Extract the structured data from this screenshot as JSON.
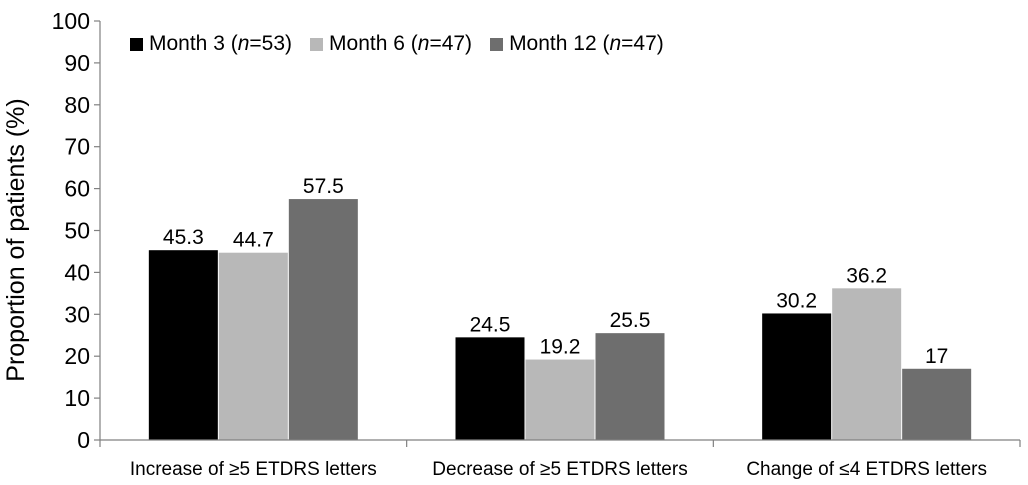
{
  "chart_data": {
    "type": "bar",
    "categories": [
      "Increase of ≥5 ETDRS letters",
      "Decrease of ≥5 ETDRS letters",
      "Change of ≤4 ETDRS letters"
    ],
    "series": [
      {
        "name": "Month 3 (n=53)",
        "name_prefix": "Month 3 (",
        "name_italic": "n",
        "name_suffix": "=53)",
        "color": "#000000",
        "values": [
          45.3,
          24.5,
          30.2
        ],
        "labels": [
          "45.3",
          "24.5",
          "30.2"
        ]
      },
      {
        "name": "Month 6 (n=47)",
        "name_prefix": "Month 6 (",
        "name_italic": "n",
        "name_suffix": "=47)",
        "color": "#b8b8b8",
        "values": [
          44.7,
          19.2,
          36.2
        ],
        "labels": [
          "44.7",
          "19.2",
          "36.2"
        ]
      },
      {
        "name": "Month 12 (n=47)",
        "name_prefix": "Month 12 (",
        "name_italic": "n",
        "name_suffix": "=47)",
        "color": "#6e6e6e",
        "values": [
          57.5,
          25.5,
          17
        ],
        "labels": [
          "57.5",
          "25.5",
          "17"
        ]
      }
    ],
    "ylabel": "Proportion of patients (%)",
    "xlabel": "",
    "ylim": [
      0,
      100
    ],
    "yticks": [
      0,
      10,
      20,
      30,
      40,
      50,
      60,
      70,
      80,
      90,
      100
    ],
    "legend_position": "top-left",
    "grid": false
  }
}
